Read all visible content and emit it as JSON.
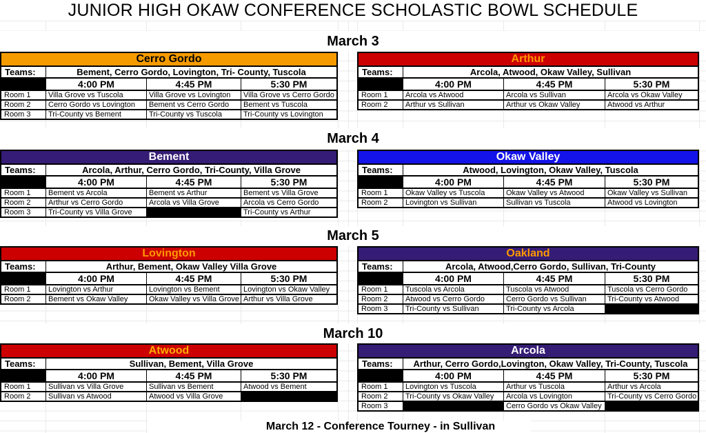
{
  "page": {
    "title": "JUNIOR HIGH OKAW CONFERENCE SCHOLASTIC BOWL SCHEDULE",
    "footer": "March 12 - Conference Tourney - in Sullivan",
    "teams_label": "Teams:",
    "corner_icon": "blue-corner-logo",
    "colors": {
      "orange_header": "#F59B00",
      "red_header": "#CC0000",
      "purple_header": "#351C75",
      "blue_header": "#1414E8",
      "gold_text": "#FF9900",
      "gridline": "#E9E9E9"
    }
  },
  "times": [
    "4:00 PM",
    "4:45 PM",
    "5:30 PM"
  ],
  "sections": [
    {
      "date": "March 3",
      "tables": [
        {
          "school": "Cerro Gordo",
          "header_bg": "#F59B00",
          "header_fg": "#000000",
          "teams": "Bement, Cerro Gordo, Lovington, Tri- County, Tuscola",
          "rooms": [
            {
              "label": "Room 1",
              "matches": [
                "Villa Grove vs Tuscola",
                "Villa Grove vs Lovington",
                "Villa Grove vs Cerro Gordo"
              ]
            },
            {
              "label": "Room 2",
              "matches": [
                "Cerro Gordo vs Lovington",
                "Bement vs Cerro Gordo",
                "Bement vs Tuscola"
              ]
            },
            {
              "label": "Room 3",
              "matches": [
                "Tri-County vs Bement",
                "Tri-County vs Tuscola",
                "Tri-County vs Lovington"
              ]
            }
          ]
        },
        {
          "school": "Arthur",
          "header_bg": "#CC0000",
          "header_fg": "#FF9900",
          "teams": "Arcola, Atwood, Okaw Valley, Sullivan",
          "rooms": [
            {
              "label": "Room 1",
              "matches": [
                "Arcola vs Atwood",
                "Arcola vs Sullivan",
                "Arcola vs Okaw Valley"
              ]
            },
            {
              "label": "Room 2",
              "matches": [
                "Arthur vs Sullivan",
                "Arthur vs Okaw Valley",
                "Atwood vs Arthur"
              ]
            }
          ]
        }
      ]
    },
    {
      "date": "March 4",
      "tables": [
        {
          "school": "Bement",
          "header_bg": "#351C75",
          "header_fg": "#FFFFFF",
          "teams": "Arcola, Arthur, Cerro Gordo, Tri-County, Villa Grove",
          "rooms": [
            {
              "label": "Room 1",
              "matches": [
                "Bement vs Arcola",
                "Bement vs Arthur",
                "Bement vs Villa Grove"
              ]
            },
            {
              "label": "Room 2",
              "matches": [
                "Arthur vs Cerro Gordo",
                "Arcola vs Villa Grove",
                "Arcola vs Cerro Gordo"
              ]
            },
            {
              "label": "Room 3",
              "matches": [
                "Tri-County vs Villa Grove",
                null,
                "Tri-County vs Arthur"
              ]
            }
          ]
        },
        {
          "school": "Okaw Valley",
          "header_bg": "#1414E8",
          "header_fg": "#FFFFFF",
          "teams": "Atwood, Lovington, Okaw Valley, Tuscola",
          "rooms": [
            {
              "label": "Room 1",
              "matches": [
                "Okaw Valley vs Tuscola",
                "Okaw Valley vs Atwood",
                "Okaw Valley vs Sullivan"
              ]
            },
            {
              "label": "Room 2",
              "matches": [
                "Lovington vs Sullivan",
                "Sullivan vs Tuscola",
                "Atwood vs Lovington"
              ]
            }
          ]
        }
      ]
    },
    {
      "date": "March 5",
      "tables": [
        {
          "school": "Lovington",
          "header_bg": "#CC0000",
          "header_fg": "#FF9900",
          "teams": "Arthur, Bement, Okaw Valley Villa Grove",
          "rooms": [
            {
              "label": "Room 1",
              "matches": [
                "Lovington vs Arthur",
                "Lovington vs Bement",
                "Lovington vs Okaw Valley"
              ]
            },
            {
              "label": "Room 2",
              "matches": [
                "Bement vs Okaw Valley",
                "Okaw Valley vs Villa Grove",
                "Arthur vs Villa Grove"
              ]
            }
          ]
        },
        {
          "school": "Oakland",
          "header_bg": "#351C75",
          "header_fg": "#FF9900",
          "teams": "Arcola, Atwood,Cerro Gordo, Sullivan, Tri-County",
          "rooms": [
            {
              "label": "Room 1",
              "matches": [
                "Tuscola vs Arcola",
                "Tuscola vs Atwood",
                "Tuscola vs Cerro Gordo"
              ]
            },
            {
              "label": "Room 2",
              "matches": [
                "Atwood vs Cerro Gordo",
                "Cerro Gordo vs Sullivan",
                "Tri-County vs Atwood"
              ]
            },
            {
              "label": "Room 3",
              "matches": [
                "Tri-County vs Sullivan",
                "Tri-County vs Arcola",
                null
              ]
            }
          ]
        }
      ]
    },
    {
      "date": "March 10",
      "tables": [
        {
          "school": "Atwood",
          "header_bg": "#CC0000",
          "header_fg": "#FFAE00",
          "teams": "Sullivan, Bement, Villa Grove",
          "rooms": [
            {
              "label": "Room 1",
              "matches": [
                "Sullivan vs Villa Grove",
                "Sullivan vs Bement",
                "Atwood vs Bement"
              ]
            },
            {
              "label": "Room 2",
              "matches": [
                "Sullivan vs Atwood",
                "Atwood vs Villa Grove",
                null
              ]
            }
          ]
        },
        {
          "school": "Arcola",
          "header_bg": "#351C75",
          "header_fg": "#FFFFFF",
          "teams": "Arthur, Cerro Gordo,Lovington, Okaw Valley, Tri-County, Tuscola",
          "rooms": [
            {
              "label": "Room 1",
              "matches": [
                "Lovington vs Tuscola",
                "Arthur vs Tuscola",
                "Arthur vs Arcola"
              ]
            },
            {
              "label": "Room 2",
              "matches": [
                "Tri-County vs Okaw Valley",
                "Arcola vs Lovington",
                "Tri-County vs Cerro Gordo"
              ]
            },
            {
              "label": "Room 3",
              "matches": [
                null,
                "Cerro Gordo vs Okaw Valley",
                null
              ]
            }
          ]
        }
      ]
    }
  ]
}
